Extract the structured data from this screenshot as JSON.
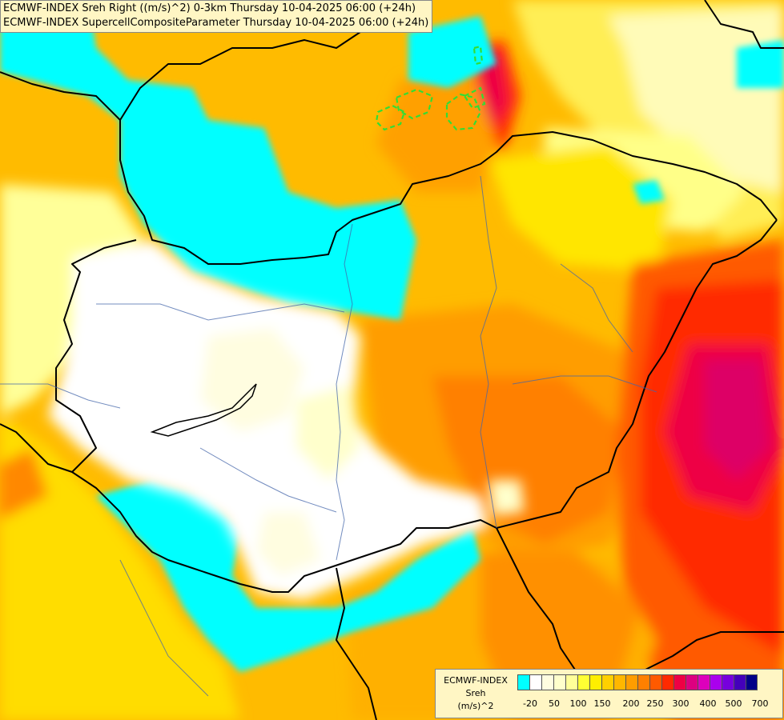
{
  "header": {
    "line1": "ECMWF-INDEX Sreh Right ((m/s)^2) 0-3km Thursday 10-04-2025 06:00 (+24h)",
    "line2": "ECMWF-INDEX SupercellCompositeParameter Thursday 10-04-2025 06:00 (+24h)"
  },
  "legend": {
    "title_line1": "ECMWF-INDEX",
    "title_line2": "Sreh",
    "title_line3": "(m/s)^2",
    "colors": [
      "#00ffff",
      "#ffffff",
      "#fffde0",
      "#ffffcc",
      "#ffff99",
      "#ffff33",
      "#ffee00",
      "#ffd000",
      "#ffb700",
      "#ff9d00",
      "#ff8000",
      "#ff5a00",
      "#ff2a00",
      "#ee0044",
      "#dd0080",
      "#dd00bb",
      "#aa00ee",
      "#7700dd",
      "#4400bb",
      "#000088"
    ],
    "tick_labels": [
      "-20",
      "50",
      "100",
      "150",
      "200",
      "250",
      "300",
      "400",
      "500",
      "700"
    ]
  },
  "map": {
    "region": "Hungary and surroundings",
    "overlay_contours": "SupercellCompositeParameter (green dashed)"
  }
}
